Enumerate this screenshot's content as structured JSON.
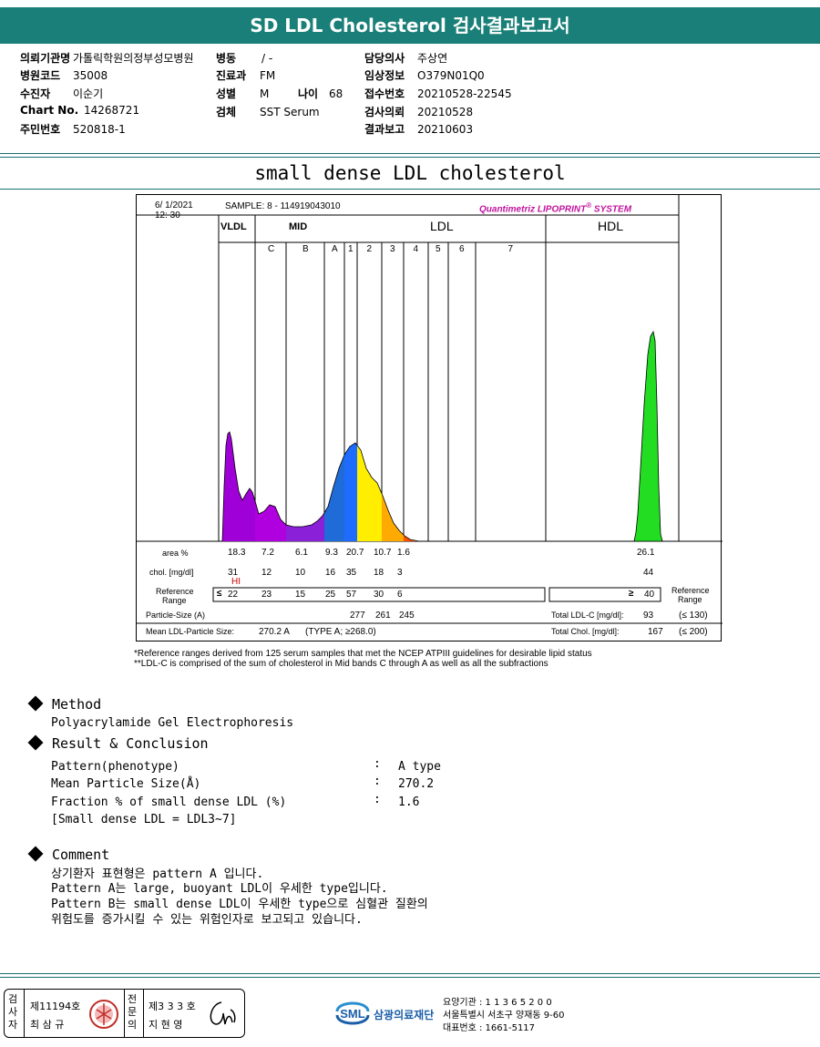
{
  "header": {
    "title": "SD LDL Cholesterol 검사결과보고서"
  },
  "info": {
    "left": [
      {
        "label": "의뢰기관명",
        "value": "가톨릭학원의정부성모병원"
      },
      {
        "label": "병원코드",
        "value": "35008"
      },
      {
        "label": "수진자",
        "value": "이순기"
      },
      {
        "label": "Chart No.",
        "value": "14268721"
      },
      {
        "label": "주민번호",
        "value": "520818-1"
      }
    ],
    "middle": [
      {
        "label": "병동",
        "value": "/ -"
      },
      {
        "label": "진료과",
        "value": "FM"
      },
      {
        "label": "성별",
        "value": "M"
      },
      {
        "label": "검체",
        "value": "SST Serum"
      }
    ],
    "age": {
      "label": "나이",
      "value": "68"
    },
    "right": [
      {
        "label": "담당의사",
        "value": "주상연"
      },
      {
        "label": "임상정보",
        "value": "O379N01Q0"
      },
      {
        "label": "접수번호",
        "value": "20210528-22545"
      },
      {
        "label": "검사의뢰",
        "value": "20210528"
      },
      {
        "label": "결과보고",
        "value": "20210603"
      }
    ]
  },
  "section_title": "small dense LDL cholesterol",
  "chart_data": {
    "type": "area",
    "date": "6/ 1/2021",
    "time": "12: 30",
    "sample": "SAMPLE:    8 - 114919043010",
    "brand": "Quantimetriz LIPOPRINT",
    "brand_sup": "®",
    "brand_suffix": "SYSTEM",
    "groups": [
      "VLDL",
      "MID",
      "LDL",
      "HDL"
    ],
    "bands": [
      "C",
      "B",
      "A",
      "1",
      "2",
      "3",
      "4",
      "5",
      "6",
      "7"
    ],
    "rows": {
      "area_label": "area %",
      "area": [
        "18.3",
        "7.2",
        "6.1",
        "9.3",
        "20.7",
        "10.7",
        "1.6"
      ],
      "area_hdl": "26.1",
      "chol_label": "chol. [mg/dl]",
      "chol": [
        "31",
        "12",
        "10",
        "16",
        "35",
        "18",
        "3"
      ],
      "chol_hdl": "44",
      "flag": "HI",
      "ref_label_1": "Reference",
      "ref_label_2": "Range",
      "ref_le": "≤",
      "ref": [
        "22",
        "23",
        "15",
        "25",
        "57",
        "30",
        "6"
      ],
      "ref_ge": "≥",
      "ref_hdl": "40",
      "particle_label": "Particle-Size (A)",
      "particle": [
        "277",
        "261",
        "245"
      ],
      "mean_label": "Mean LDL-Particle Size:",
      "mean_value": "270.2 A",
      "mean_type": "(TYPE A; ≥268.0)",
      "total_ldl_label": "Total LDL-C [mg/dl]:",
      "total_ldl": "93",
      "total_ldl_ref": "(≤ 130)",
      "total_chol_label": "Total Chol. [mg/dl]:",
      "total_chol": "167",
      "total_chol_ref": "(≤ 200)"
    }
  },
  "notes": [
    "*Reference ranges derived from 125 serum samples that met the NCEP ATPIII guidelines for desirable lipid status",
    "**LDL-C is comprised of the sum of cholesterol in Mid bands C through A as well as all the subfractions"
  ],
  "method": {
    "heading": "Method",
    "text": "Polyacrylamide Gel Electrophoresis"
  },
  "result": {
    "heading": "Result & Conclusion",
    "items": [
      {
        "label": "Pattern(phenotype)",
        "value": "A type"
      },
      {
        "label": "Mean Particle Size(Å)",
        "value": "270.2"
      },
      {
        "label": "Fraction % of small dense LDL (%)",
        "value": "1.6"
      }
    ],
    "note": "[Small dense LDL = LDL3~7]"
  },
  "comment": {
    "heading": "Comment",
    "lines": [
      "상기환자 표현형은 pattern A 입니다.",
      "Pattern A는 large, buoyant LDL이 우세한 type입니다.",
      "Pattern B는 small dense LDL이 우세한 type으로 심혈관 질환의",
      "위험도를 증가시킬 수 있는 위험인자로 보고되고 있습니다."
    ]
  },
  "footer": {
    "examiner_label": "검사자",
    "examiner_no": "제11194호",
    "examiner_name": "최 삼 규",
    "specialist_label": "전문의",
    "specialist_no": "제3 3 3 호",
    "specialist_name": "지 현 영",
    "logo_text": "SML",
    "org": "삼광의료재단",
    "addr": [
      "요양기관 : 1 1 3 6 5 2 0 0",
      "서울특별시 서초구 양재동 9-60",
      "대표번호 : 1661-5117"
    ]
  }
}
